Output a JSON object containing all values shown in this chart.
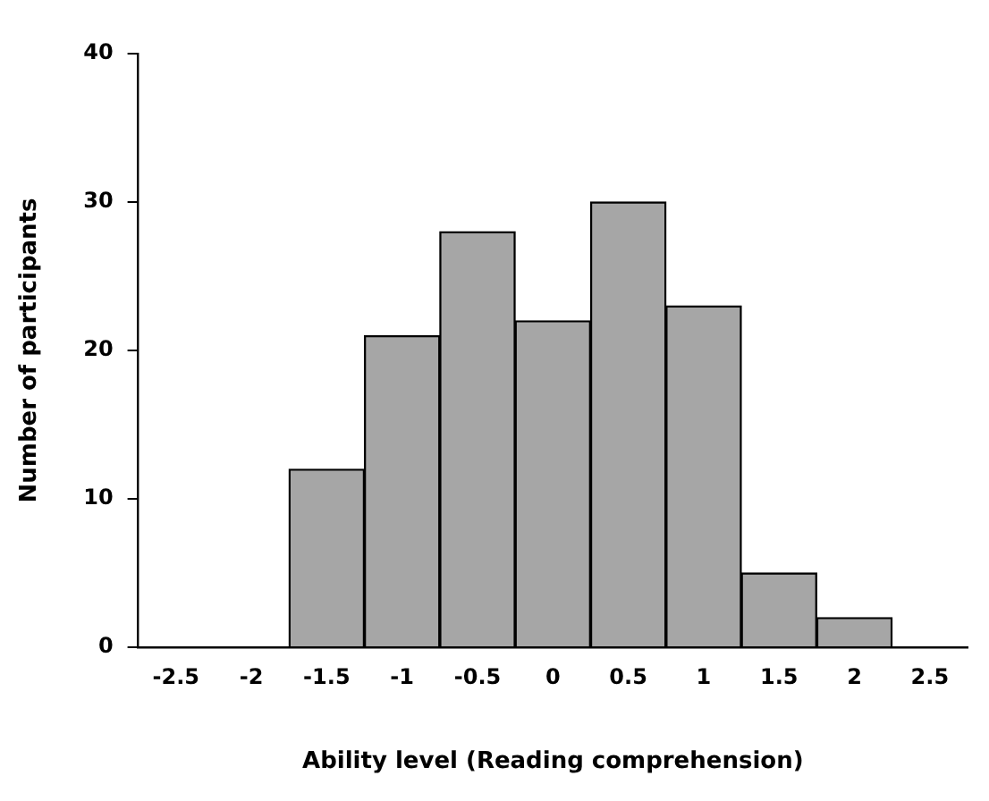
{
  "chart_data": {
    "type": "bar",
    "categories": [
      "-2.5",
      "-2",
      "-1.5",
      "-1",
      "-0.5",
      "0",
      "0.5",
      "1",
      "1.5",
      "2",
      "2.5"
    ],
    "values": [
      0,
      0,
      12,
      21,
      28,
      22,
      30,
      23,
      5,
      2,
      0
    ],
    "color": "#a6a6a6",
    "xlabel": "Ability level (Reading comprehension)",
    "ylabel": "Number of participants",
    "ylim": [
      0,
      40
    ],
    "yticks": [
      0,
      10,
      20,
      30,
      40
    ],
    "grid": false,
    "legend": false
  }
}
